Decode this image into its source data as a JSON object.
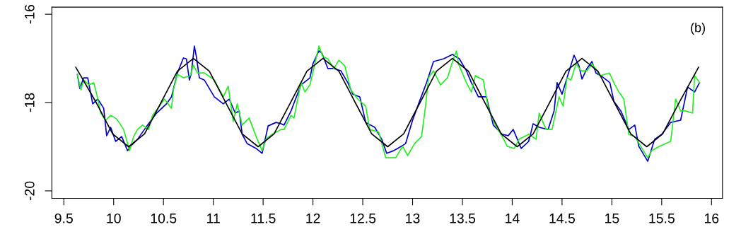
{
  "chart_data": {
    "type": "line",
    "annotations": [
      "(b)"
    ],
    "xlim": [
      9.38,
      16.11
    ],
    "ylim": [
      -20.17,
      -15.84
    ],
    "xticks": [
      9.5,
      10,
      10.5,
      11,
      11.5,
      12,
      12.5,
      13,
      13.5,
      14,
      14.5,
      15,
      15.5,
      16
    ],
    "yticks": [
      -20,
      -18,
      -16
    ],
    "grid": false,
    "marker": "none",
    "line_style": "solid",
    "series": [
      {
        "color": "#0000cc",
        "x": [
          9.636,
          9.66,
          9.7,
          9.74,
          9.79,
          9.84,
          9.9,
          9.93,
          9.97,
          10.02,
          10.08,
          10.14,
          10.17,
          10.24,
          10.34,
          10.43,
          10.53,
          10.58,
          10.64,
          10.7,
          10.73,
          10.76,
          10.78,
          10.81,
          10.83,
          10.86,
          10.91,
          11.01,
          11.1,
          11.16,
          11.22,
          11.26,
          11.29,
          11.34,
          11.43,
          11.49,
          11.55,
          11.63,
          11.68,
          11.71,
          11.78,
          11.88,
          11.97,
          12.0,
          12.06,
          12.09,
          12.15,
          12.21,
          12.28,
          12.35,
          12.4,
          12.47,
          12.53,
          12.62,
          12.69,
          12.74,
          12.81,
          12.85,
          12.93,
          13.0,
          13.07,
          13.14,
          13.21,
          13.31,
          13.4,
          13.47,
          13.54,
          13.59,
          13.66,
          13.74,
          13.81,
          13.9,
          13.96,
          14.01,
          14.07,
          14.09,
          14.165,
          14.21,
          14.27,
          14.36,
          14.42,
          14.45,
          14.5,
          14.55,
          14.62,
          14.67,
          14.7,
          14.75,
          14.8,
          14.84,
          14.9,
          14.98,
          15.02,
          15.09,
          15.17,
          15.23,
          15.27,
          15.36,
          15.43,
          15.5,
          15.59,
          15.69,
          15.76,
          15.83,
          15.88
        ],
        "values": [
          -17.36,
          -17.68,
          -17.44,
          -17.44,
          -18.03,
          -17.92,
          -18.13,
          -18.75,
          -18.56,
          -18.88,
          -18.77,
          -19.09,
          -18.99,
          -18.83,
          -18.51,
          -18.24,
          -18.03,
          -17.87,
          -17.33,
          -16.99,
          -17.01,
          -17.49,
          -17.33,
          -16.72,
          -16.96,
          -17.44,
          -17.49,
          -17.87,
          -18.03,
          -17.92,
          -18.24,
          -18.19,
          -18.72,
          -18.93,
          -19.04,
          -19.15,
          -18.53,
          -18.45,
          -18.48,
          -18.51,
          -18.19,
          -17.6,
          -17.44,
          -17.12,
          -16.83,
          -16.88,
          -17.23,
          -17.23,
          -17.28,
          -17.55,
          -17.81,
          -17.87,
          -18.45,
          -18.56,
          -18.83,
          -19.15,
          -19.09,
          -19.04,
          -18.93,
          -18.4,
          -17.97,
          -17.55,
          -17.07,
          -17.01,
          -16.91,
          -17.01,
          -17.28,
          -17.55,
          -17.87,
          -17.87,
          -18.51,
          -18.72,
          -18.75,
          -18.61,
          -18.93,
          -19.04,
          -18.88,
          -18.48,
          -18.56,
          -18.61,
          -18.19,
          -17.55,
          -17.81,
          -17.44,
          -16.93,
          -17.17,
          -17.47,
          -17.23,
          -17.07,
          -17.33,
          -17.41,
          -17.55,
          -17.97,
          -18.19,
          -18.61,
          -18.51,
          -18.99,
          -19.33,
          -18.83,
          -18.72,
          -18.45,
          -18.4,
          -17.65,
          -17.76,
          -17.55
        ]
      },
      {
        "color": "#22ee22",
        "x": [
          9.636,
          9.67,
          9.7,
          9.75,
          9.8,
          9.83,
          9.87,
          9.92,
          9.97,
          10.03,
          10.1,
          10.16,
          10.2,
          10.24,
          10.29,
          10.35,
          10.39,
          10.46,
          10.51,
          10.58,
          10.6,
          10.64,
          10.7,
          10.77,
          10.8,
          10.84,
          10.91,
          11.01,
          11.1,
          11.15,
          11.2,
          11.24,
          11.29,
          11.36,
          11.43,
          11.49,
          11.53,
          11.59,
          11.68,
          11.71,
          11.78,
          11.81,
          11.88,
          11.92,
          11.97,
          12.02,
          12.06,
          12.1,
          12.15,
          12.21,
          12.26,
          12.32,
          12.38,
          12.45,
          12.53,
          12.57,
          12.66,
          12.73,
          12.83,
          12.9,
          12.95,
          13.02,
          13.09,
          13.13,
          13.16,
          13.21,
          13.28,
          13.35,
          13.41,
          13.44,
          13.46,
          13.54,
          13.59,
          13.63,
          13.71,
          13.76,
          13.83,
          13.9,
          13.95,
          14.02,
          14.07,
          14.165,
          14.24,
          14.27,
          14.34,
          14.4,
          14.47,
          14.51,
          14.55,
          14.59,
          14.64,
          14.69,
          14.75,
          14.8,
          14.88,
          14.975,
          15.02,
          15.07,
          15.12,
          15.17,
          15.23,
          15.29,
          15.36,
          15.4,
          15.48,
          15.59,
          15.64,
          15.69,
          15.74,
          15.81,
          15.83,
          15.88
        ],
        "values": [
          -17.36,
          -17.71,
          -17.49,
          -17.6,
          -17.55,
          -17.81,
          -18.24,
          -18.4,
          -18.29,
          -18.37,
          -18.61,
          -19.09,
          -18.77,
          -18.61,
          -18.51,
          -18.61,
          -18.29,
          -18.08,
          -17.92,
          -18.13,
          -17.71,
          -17.36,
          -17.44,
          -17.39,
          -17.15,
          -17.33,
          -17.33,
          -17.49,
          -17.87,
          -17.63,
          -18.43,
          -18.03,
          -18.51,
          -18.35,
          -18.77,
          -19.09,
          -18.83,
          -18.72,
          -18.61,
          -18.61,
          -18.29,
          -18.35,
          -17.55,
          -17.76,
          -17.6,
          -17.12,
          -16.72,
          -16.96,
          -17.01,
          -17.23,
          -17.04,
          -17.17,
          -17.71,
          -17.92,
          -18.08,
          -18.61,
          -18.67,
          -19.25,
          -19.25,
          -18.99,
          -19.2,
          -18.93,
          -18.77,
          -18.08,
          -17.44,
          -17.28,
          -17.6,
          -17.44,
          -17.01,
          -16.83,
          -17.12,
          -17.55,
          -17.76,
          -17.39,
          -17.49,
          -18.13,
          -18.51,
          -18.77,
          -18.99,
          -19.04,
          -18.83,
          -18.72,
          -18.83,
          -18.24,
          -18.61,
          -18.61,
          -17.87,
          -18.08,
          -17.44,
          -17.49,
          -17.12,
          -17.28,
          -17.28,
          -17.12,
          -17.39,
          -17.33,
          -17.55,
          -17.76,
          -17.92,
          -18.72,
          -18.77,
          -18.99,
          -19.25,
          -19.09,
          -18.99,
          -18.88,
          -17.92,
          -18.19,
          -18.19,
          -18.24,
          -17.39,
          -17.55
        ]
      },
      {
        "color": "#000000",
        "x": [
          9.62,
          9.825,
          9.99,
          10.15,
          10.31,
          10.475,
          10.64,
          10.8,
          10.96,
          11.125,
          11.29,
          11.45,
          11.61,
          11.775,
          11.94,
          12.1,
          12.26,
          12.425,
          12.59,
          12.75,
          12.91,
          13.075,
          13.24,
          13.4,
          13.56,
          13.725,
          13.89,
          14.05,
          14.21,
          14.375,
          14.54,
          14.7,
          14.86,
          15.025,
          15.19,
          15.35,
          15.51,
          15.675,
          15.87
        ],
        "values": [
          -17.2,
          -18,
          -18.71,
          -19,
          -18.71,
          -18,
          -17.29,
          -17,
          -17.29,
          -18,
          -18.71,
          -19,
          -18.71,
          -18,
          -17.29,
          -17,
          -17.29,
          -18,
          -18.71,
          -19,
          -18.71,
          -18,
          -17.29,
          -17,
          -17.29,
          -18,
          -18.71,
          -19,
          -18.71,
          -18,
          -17.29,
          -17,
          -17.29,
          -18,
          -18.71,
          -19,
          -18.71,
          -18,
          -17.2
        ]
      }
    ]
  }
}
